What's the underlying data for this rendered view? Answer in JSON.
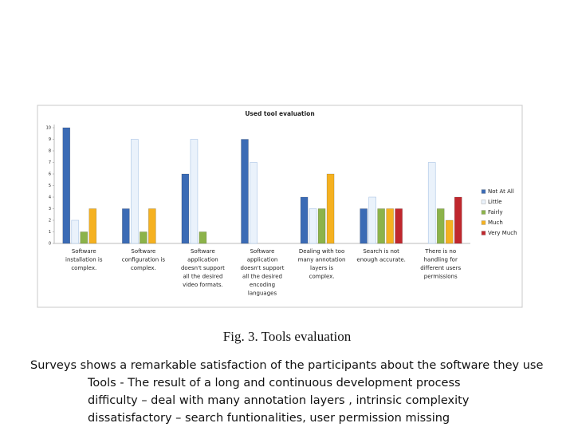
{
  "chart_data": {
    "type": "bar",
    "title": "Used tool evaluation",
    "categories": [
      "Software installation is complex.",
      "Software configuration is complex.",
      "Software application doesn't support all the desired video formats.",
      "Software application doesn't support all the desired encoding languages",
      "Dealing with too many annotation layers is complex.",
      "Search is not enough accurate.",
      "There is no handling for different users permissions"
    ],
    "series": [
      {
        "name": "Not At All",
        "color": "#3b6bb5",
        "values": [
          10,
          3,
          6,
          9,
          4,
          3,
          0
        ]
      },
      {
        "name": "Little",
        "color": "#eaf2fb",
        "values": [
          2,
          9,
          9,
          7,
          3,
          4,
          7
        ]
      },
      {
        "name": "Fairly",
        "color": "#8cb34a",
        "values": [
          1,
          1,
          1,
          0,
          3,
          3,
          3
        ]
      },
      {
        "name": "Much",
        "color": "#f5b120",
        "values": [
          3,
          3,
          0,
          0,
          6,
          3,
          2
        ]
      },
      {
        "name": "Very Much",
        "color": "#c0272d",
        "values": [
          0,
          0,
          0,
          0,
          0,
          3,
          4
        ]
      }
    ],
    "ylim": [
      0,
      10
    ],
    "yticks": [
      0,
      1,
      2,
      3,
      4,
      5,
      6,
      7,
      8,
      9,
      10
    ],
    "grid": false,
    "legend": "right"
  },
  "caption": "Fig. 3. Tools evaluation",
  "notes": [
    "Surveys shows a remarkable satisfaction of the participants about the software they use",
    "Tools - The result of a long and continuous development process",
    "difficulty – deal with many annotation layers , intrinsic complexity",
    "dissatisfactory – search funtionalities, user permission missing"
  ]
}
